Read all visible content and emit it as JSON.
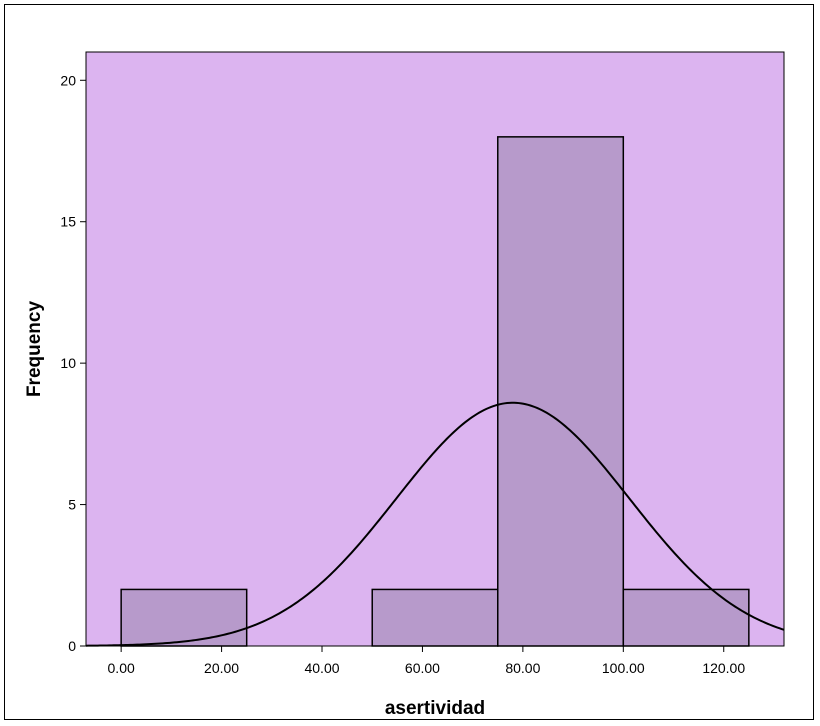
{
  "chart_data": {
    "type": "bar",
    "subtype": "histogram",
    "xlabel": "asertividad",
    "ylabel": "Frequency",
    "bin_edges": [
      0,
      25,
      50,
      75,
      100,
      125
    ],
    "values": [
      2,
      0,
      2,
      18,
      2
    ],
    "x_ticks": [
      0,
      20,
      40,
      60,
      80,
      100,
      120
    ],
    "x_tick_labels": [
      "0.00",
      "20.00",
      "40.00",
      "60.00",
      "80.00",
      "100.00",
      "120.00"
    ],
    "y_ticks": [
      0,
      5,
      10,
      15,
      20
    ],
    "y_tick_labels": [
      "0",
      "5",
      "10",
      "15",
      "20"
    ],
    "xlim": [
      -7,
      132
    ],
    "ylim": [
      0,
      21
    ],
    "normal_curve": {
      "mean": 78,
      "sd": 23.2,
      "peak": 8.6
    },
    "grid": false,
    "legend": "none",
    "colors": {
      "plot_background": "#dcb4f0",
      "bar_fill": "#b79acb",
      "bar_stroke": "#000000",
      "curve": "#000000",
      "frame": "#000000"
    }
  }
}
